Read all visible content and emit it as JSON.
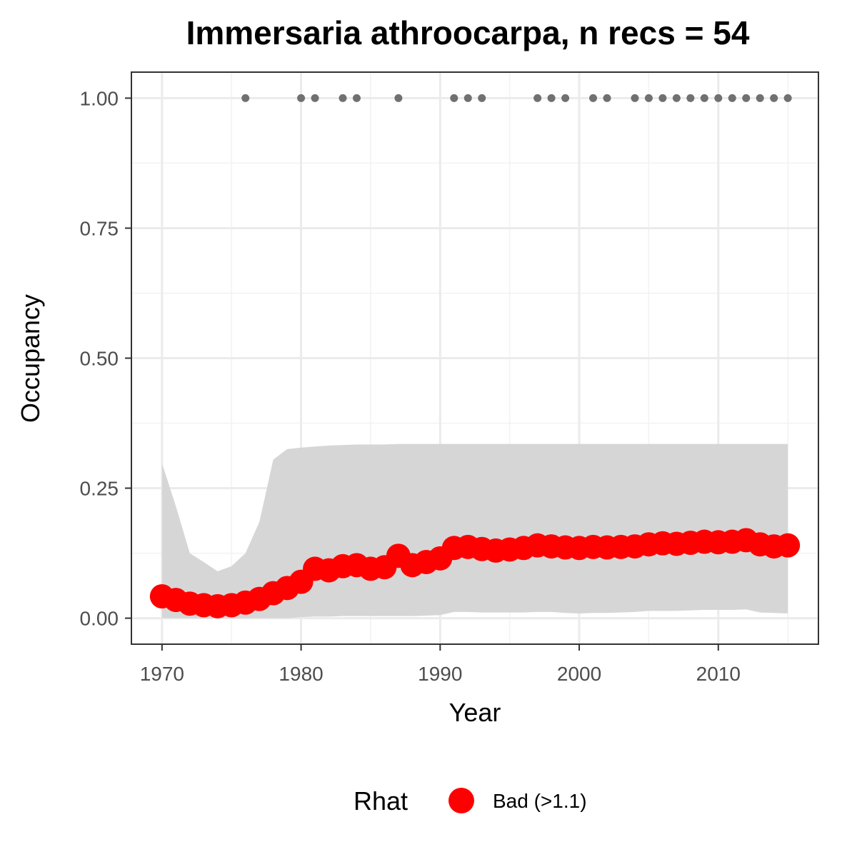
{
  "colors": {
    "point": "#ff0000",
    "ribbon": "#d6d6d6",
    "record": "#707070",
    "grid_major": "#ebebeb",
    "grid_minor": "#f2f2f2",
    "panel_border": "#333333"
  },
  "chart_data": {
    "type": "line",
    "title": "Immersaria athroocarpa, n recs = 54",
    "xlabel": "Year",
    "ylabel": "Occupancy",
    "xlim": [
      1967.8,
      2017.2
    ],
    "ylim": [
      -0.05,
      1.05
    ],
    "x_ticks": [
      1970,
      1980,
      1990,
      2000,
      2010
    ],
    "y_ticks": [
      0,
      0.25,
      0.5,
      0.75,
      1.0
    ],
    "y_tick_labels": [
      "0.00",
      "0.25",
      "0.50",
      "0.75",
      "1.00"
    ],
    "grid": true,
    "legend": {
      "position": "bottom",
      "title": "Rhat",
      "entries": [
        {
          "label": "Bad (>1.1)",
          "color": "#ff0000"
        }
      ]
    },
    "series": [
      {
        "x": [
          1970,
          1971,
          1972,
          1973,
          1974,
          1975,
          1976,
          1977,
          1978,
          1979,
          1980,
          1981,
          1982,
          1983,
          1984,
          1985,
          1986,
          1987,
          1988,
          1989,
          1990,
          1991,
          1992,
          1993,
          1994,
          1995,
          1996,
          1997,
          1998,
          1999,
          2000,
          2001,
          2002,
          2003,
          2004,
          2005,
          2006,
          2007,
          2008,
          2009,
          2010,
          2011,
          2012,
          2013,
          2014,
          2015
        ],
        "y": [
          0.042,
          0.035,
          0.028,
          0.025,
          0.023,
          0.025,
          0.03,
          0.037,
          0.048,
          0.058,
          0.07,
          0.095,
          0.092,
          0.1,
          0.102,
          0.095,
          0.098,
          0.12,
          0.102,
          0.108,
          0.115,
          0.135,
          0.137,
          0.133,
          0.13,
          0.132,
          0.135,
          0.14,
          0.138,
          0.136,
          0.135,
          0.137,
          0.136,
          0.137,
          0.138,
          0.142,
          0.144,
          0.143,
          0.145,
          0.147,
          0.146,
          0.147,
          0.15,
          0.142,
          0.138,
          0.14
        ],
        "lower": [
          0.0,
          0.0,
          0.0,
          0.0,
          0.0,
          0.0,
          0.0,
          0.0,
          0.0,
          0.0,
          0.002,
          0.003,
          0.003,
          0.004,
          0.004,
          0.004,
          0.004,
          0.004,
          0.004,
          0.005,
          0.006,
          0.012,
          0.012,
          0.011,
          0.011,
          0.011,
          0.011,
          0.012,
          0.012,
          0.01,
          0.009,
          0.01,
          0.01,
          0.011,
          0.012,
          0.014,
          0.014,
          0.014,
          0.015,
          0.016,
          0.016,
          0.016,
          0.017,
          0.011,
          0.01,
          0.009
        ],
        "upper": [
          0.298,
          0.215,
          0.125,
          0.108,
          0.09,
          0.1,
          0.125,
          0.185,
          0.305,
          0.325,
          0.328,
          0.33,
          0.332,
          0.333,
          0.334,
          0.334,
          0.334,
          0.335,
          0.335,
          0.335,
          0.335,
          0.335,
          0.335,
          0.335,
          0.335,
          0.335,
          0.335,
          0.335,
          0.335,
          0.335,
          0.335,
          0.335,
          0.335,
          0.335,
          0.335,
          0.335,
          0.335,
          0.335,
          0.335,
          0.335,
          0.335,
          0.335,
          0.335,
          0.335,
          0.335,
          0.335
        ]
      }
    ],
    "records": {
      "y": 1.0,
      "x": [
        1976,
        1980,
        1981,
        1983,
        1984,
        1987,
        1991,
        1992,
        1993,
        1997,
        1998,
        1999,
        2001,
        2002,
        2004,
        2005,
        2006,
        2007,
        2008,
        2009,
        2010,
        2011,
        2012,
        2013,
        2014,
        2015
      ]
    }
  }
}
